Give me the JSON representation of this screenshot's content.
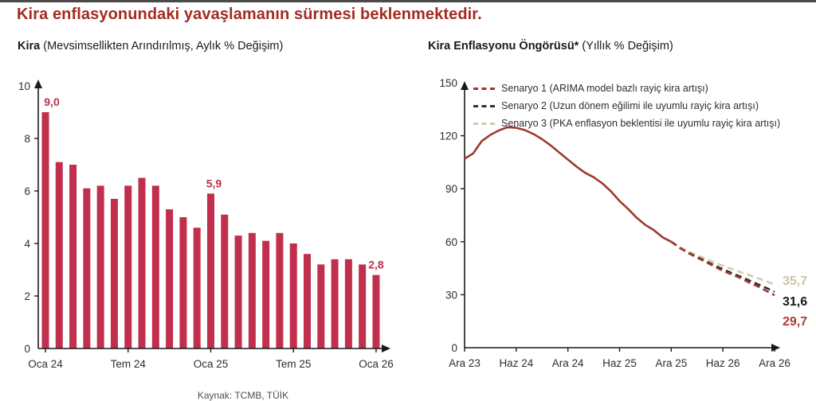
{
  "page_title": "Kira enflasyonundaki yavaşlamanın sürmesi beklenmektedir.",
  "caption": "Kaynak: TCMB, TÜİK",
  "colors": {
    "title": "#a32b22",
    "axis": "#1a1a1a",
    "tick_text": "#2e2e2e",
    "bar": "#c02f4c",
    "bar_label": "#c02f4c",
    "history_line": "#9c3a30",
    "scenario1": "#9c3a30",
    "scenario2": "#2e2e2e",
    "scenario3": "#d6caa8",
    "end_label_1": "#b23a31",
    "end_label_2": "#1a1a1a",
    "end_label_3": "#cfc3a3"
  },
  "chart_data": [
    {
      "type": "bar",
      "title_bold": "Kira",
      "title_rest": " (Mevsimsellikten Arındırılmış, Aylık % Değişim)",
      "categories": [
        "Oca 24",
        "Şub 24",
        "Mar 24",
        "Nis 24",
        "May 24",
        "Haz 24",
        "Tem 24",
        "Ağu 24",
        "Eyl 24",
        "Eki 24",
        "Kas 24",
        "Ara 24",
        "Oca 25",
        "Şub 25",
        "Mar 25",
        "Nis 25",
        "May 25",
        "Haz 25",
        "Tem 25",
        "Ağu 25",
        "Eyl 25",
        "Eki 25",
        "Kas 25",
        "Ara 25",
        "Oca 26"
      ],
      "values": [
        9.0,
        7.1,
        7.0,
        6.1,
        6.2,
        5.7,
        6.2,
        6.5,
        6.2,
        5.3,
        5.0,
        4.6,
        5.9,
        5.1,
        4.3,
        4.4,
        4.1,
        4.4,
        4.0,
        3.6,
        3.2,
        3.4,
        3.4,
        3.2,
        2.8
      ],
      "ylim": [
        0,
        10
      ],
      "y_ticks": [
        0,
        2,
        4,
        6,
        8,
        10
      ],
      "x_tick_labels": [
        "Oca 24",
        "Tem 24",
        "Oca 25",
        "Tem 25",
        "Oca 26"
      ],
      "x_tick_indices": [
        0,
        6,
        12,
        18,
        24
      ],
      "grid": false,
      "annotations": [
        {
          "index": 0,
          "label": "9,0",
          "dx": 8
        },
        {
          "index": 12,
          "label": "5,9",
          "dx": 4
        },
        {
          "index": 24,
          "label": "2,8",
          "dx": 0
        }
      ]
    },
    {
      "type": "line",
      "title_bold": "Kira Enflasyonu Öngörüsü*",
      "title_rest": " (Yıllık % Değişim)",
      "ylim": [
        0,
        150
      ],
      "y_ticks": [
        0,
        30,
        60,
        90,
        120,
        150
      ],
      "x_tick_labels": [
        "Ara 23",
        "Haz 24",
        "Ara 24",
        "Haz 25",
        "Ara 25",
        "Haz 26",
        "Ara 26"
      ],
      "x_tick_month_indices": [
        0,
        6,
        12,
        18,
        24,
        30,
        36
      ],
      "grid": false,
      "legend_position": "top-left-inside",
      "legend": [
        "Senaryo 1 (ARIMA model bazlı rayiç kira artışı)",
        "Senaryo 2 (Uzun dönem eğilimi ile uyumlu rayiç kira artışı)",
        "Senaryo 3 (PKA enflasyon beklentisi ile  uyumlu  rayiç kira artışı)"
      ],
      "series": [
        {
          "id": "history",
          "style": "solid",
          "color_key": "history_line",
          "start_month": 0,
          "values": [
            107,
            110,
            117,
            120.5,
            123,
            124.8,
            124.5,
            123.2,
            121,
            118,
            114.5,
            110.5,
            106.5,
            102.5,
            99,
            96.5,
            93,
            88.5,
            83,
            78.5,
            73.5,
            69.5,
            66.5,
            62.5,
            60
          ]
        },
        {
          "id": "senaryo-3",
          "style": "dashed",
          "color_key": "scenario3",
          "start_month": 24,
          "values": [
            60,
            57,
            54.5,
            52.3,
            50.3,
            48.3,
            46.4,
            44.6,
            42.9,
            41.2,
            39.4,
            37.6,
            35.7
          ],
          "end_label": "35,7",
          "end_label_color_key": "end_label_3"
        },
        {
          "id": "senaryo-2",
          "style": "dashed",
          "color_key": "scenario2",
          "start_month": 24,
          "values": [
            60,
            56.5,
            53.8,
            51.3,
            49,
            46.6,
            44.4,
            42.3,
            40.3,
            38.2,
            36.1,
            33.9,
            31.6
          ],
          "end_label": "31,6",
          "end_label_color_key": "end_label_2"
        },
        {
          "id": "senaryo-1",
          "style": "dashed",
          "color_key": "scenario1",
          "start_month": 24,
          "values": [
            60,
            56.5,
            53.5,
            51,
            48.5,
            46,
            43.5,
            41.5,
            39.5,
            37,
            34.8,
            32.3,
            29.7
          ],
          "end_label": "29,7",
          "end_label_color_key": "end_label_1"
        }
      ]
    }
  ]
}
